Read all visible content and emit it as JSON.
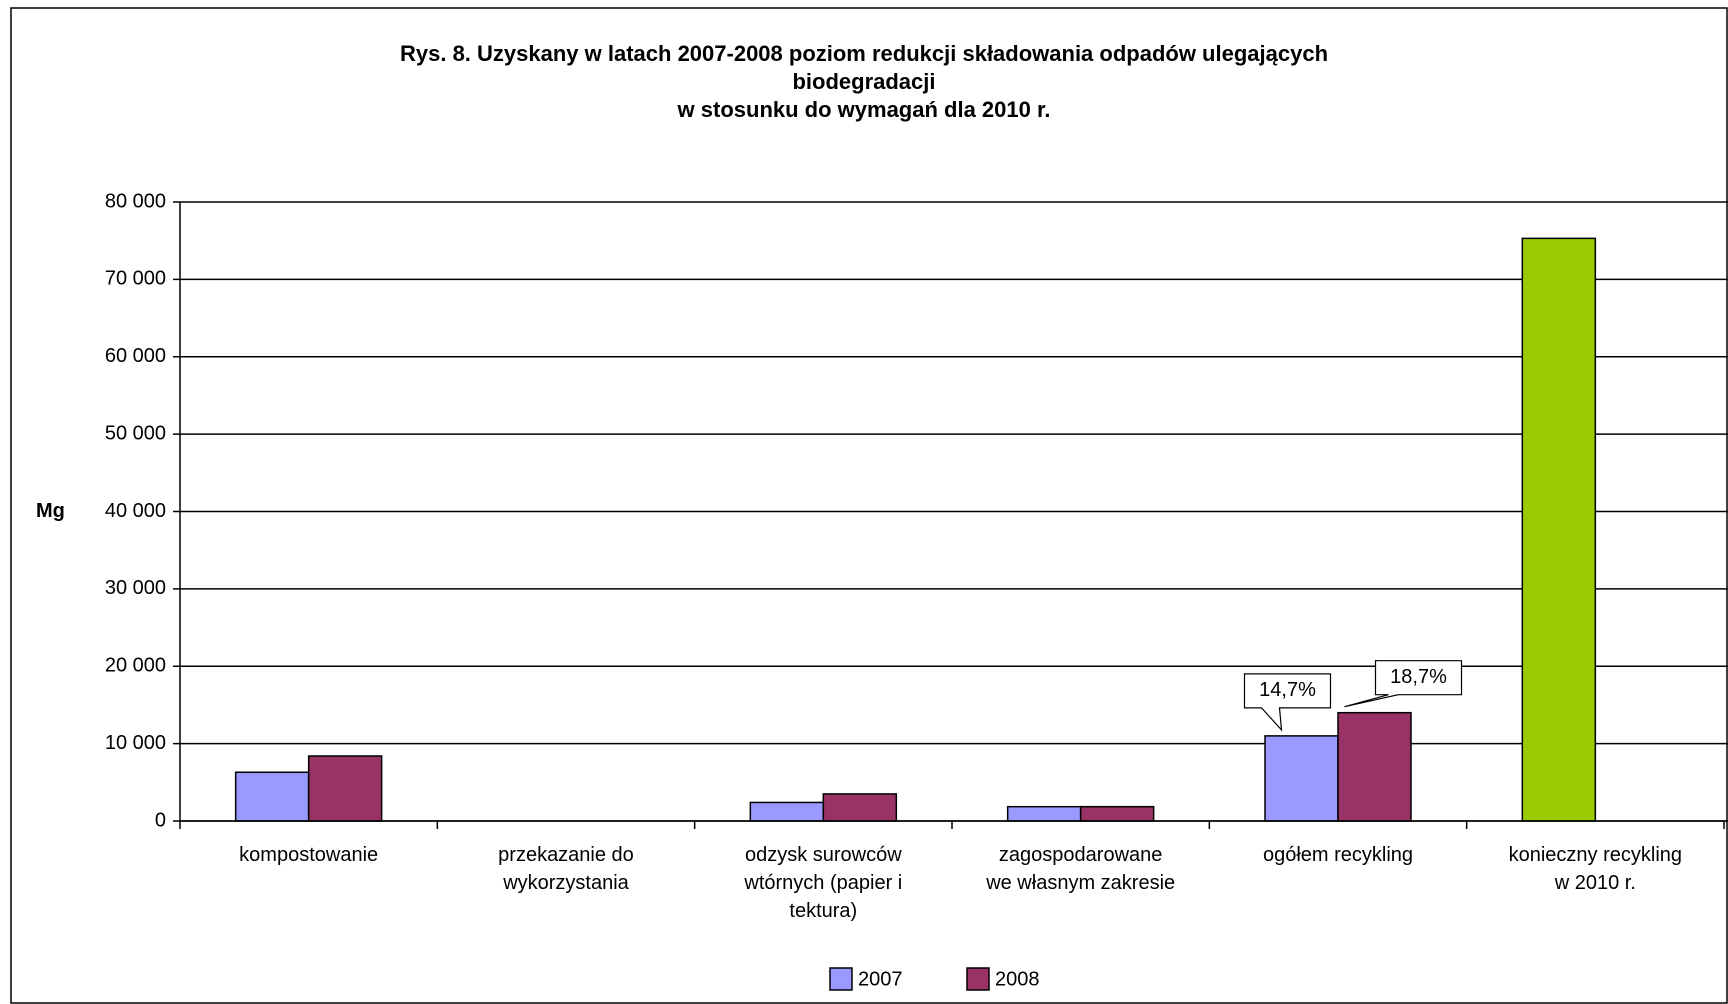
{
  "chart_data": {
    "type": "bar",
    "title": "Rys. 8. Uzyskany w latach 2007-2008 poziom redukcji składowania odpadów ulegających\nbiodegradacji\nw stosunku do wymagań dla 2010 r.",
    "ylabel": "Mg",
    "categories": [
      "kompostowanie",
      "przekazanie do\nwykorzystania",
      "odzysk surowców\nwtórnych (papier i\ntektura)",
      "zagospodarowane\nwe własnym zakresie",
      "ogółem recykling",
      "konieczny recykling\nw 2010 r."
    ],
    "series": [
      {
        "name": "2007",
        "color": "#9999ff",
        "colors": [
          "#9999ff",
          "#9999ff",
          "#9999ff",
          "#9999ff",
          "#9999ff",
          "#99cc00"
        ],
        "values": [
          6300,
          0,
          2400,
          1850,
          11000,
          75300
        ]
      },
      {
        "name": "2008",
        "color": "#993366",
        "values": [
          8400,
          0,
          3500,
          1850,
          14000,
          null
        ]
      }
    ],
    "annotations": [
      "14,7%",
      "18,7%"
    ],
    "ylim": [
      0,
      80000
    ],
    "yticks": [
      0,
      {
        "value": 10000,
        "label": "10 000"
      },
      {
        "value": 20000,
        "label": "20 000"
      },
      {
        "value": 30000,
        "label": "30 000"
      },
      {
        "value": 40000,
        "label": "40 000"
      },
      {
        "value": 50000,
        "label": "50 000"
      },
      {
        "value": 60000,
        "label": "60 000"
      },
      {
        "value": 70000,
        "label": "70 000"
      },
      {
        "value": 80000,
        "label": "80 000"
      }
    ],
    "grid": true,
    "legend": "bottom"
  }
}
